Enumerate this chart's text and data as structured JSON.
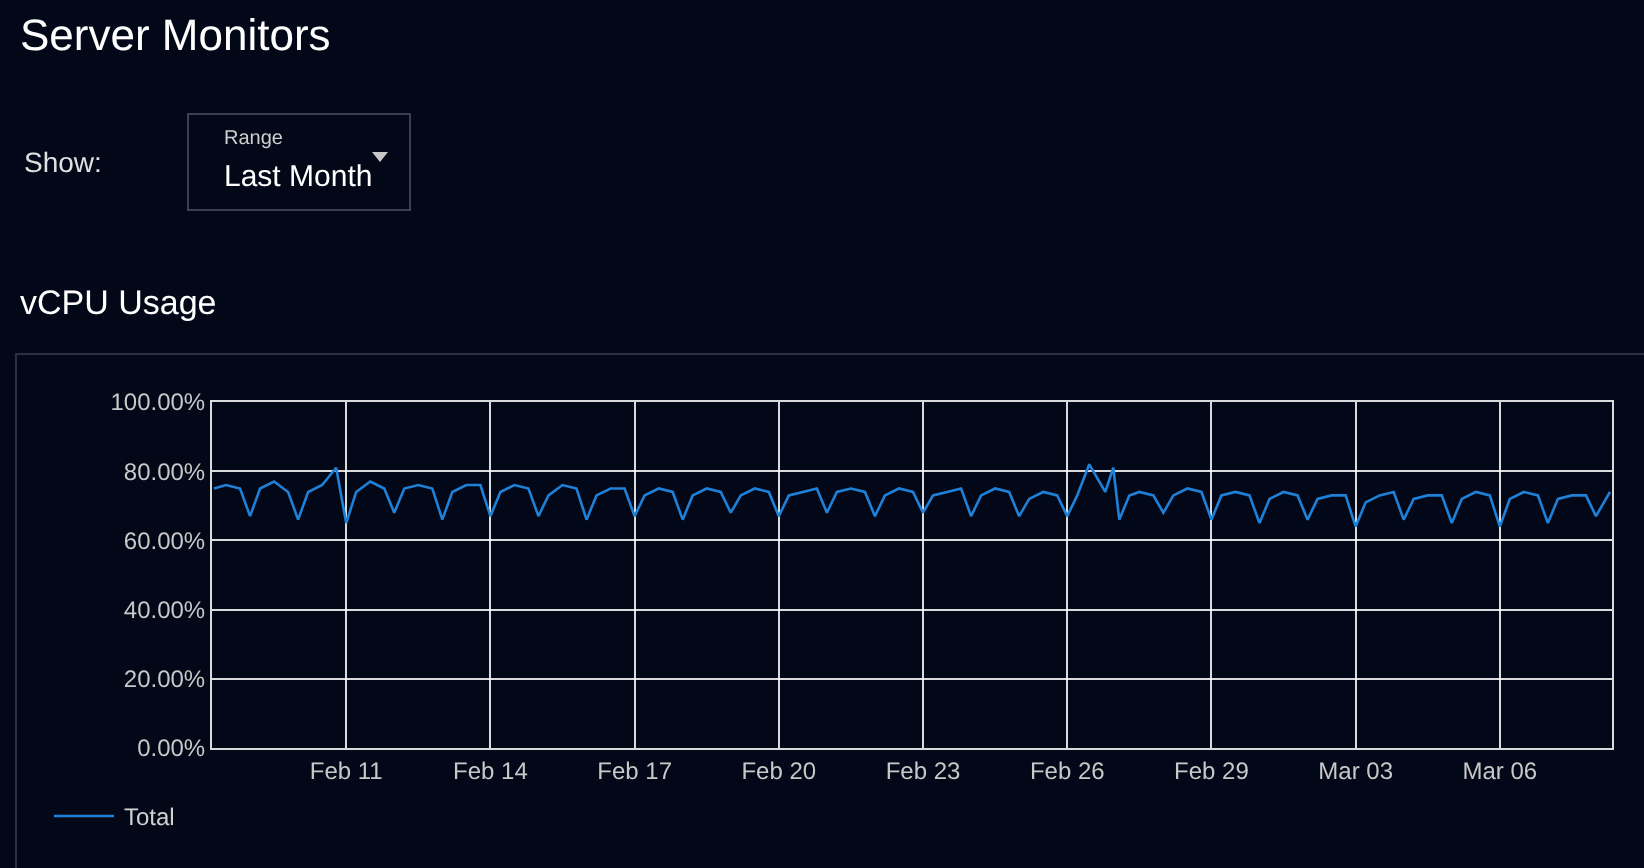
{
  "chart_data": {
    "type": "line",
    "title": "Server Monitors",
    "subtitle": "vCPU Usage",
    "annotations": [
      "Show:",
      "Range",
      "Last Month"
    ],
    "xlim": [
      "--02-08T05:00",
      "--03-08T08:00"
    ],
    "xticks": [
      {
        "value": "--02-11",
        "label": "Feb 11"
      },
      {
        "value": "--02-14",
        "label": "Feb 14"
      },
      {
        "value": "--02-17",
        "label": "Feb 17"
      },
      {
        "value": "--02-20",
        "label": "Feb 20"
      },
      {
        "value": "--02-23",
        "label": "Feb 23"
      },
      {
        "value": "--02-26",
        "label": "Feb 26"
      },
      {
        "value": "--02-29",
        "label": "Feb 29"
      },
      {
        "value": "--03-03",
        "label": "Mar 03"
      },
      {
        "value": "--03-06",
        "label": "Mar 06"
      }
    ],
    "ylim": [
      0,
      100
    ],
    "yticks": [
      {
        "value": 0,
        "label": "0.00%"
      },
      {
        "value": 20,
        "label": "20.00%"
      },
      {
        "value": 40,
        "label": "40.00%"
      },
      {
        "value": 60,
        "label": "60.00%"
      },
      {
        "value": 80,
        "label": "80.00%"
      },
      {
        "value": 100,
        "label": "100.00%"
      }
    ],
    "grid": true,
    "legend": "bottom left",
    "marker": "none",
    "line_style": "solid",
    "series": [
      {
        "name": "Total",
        "color": "#1f80d8",
        "x": [
          "--02-08T06:00",
          "--02-08T12:00",
          "--02-08T19:00",
          "--02-09T00:00",
          "--02-09T05:00",
          "--02-09T12:00",
          "--02-09T19:00",
          "--02-10T00:00",
          "--02-10T05:00",
          "--02-10T12:00",
          "--02-10T19:00",
          "--02-11T00:00",
          "--02-11T05:00",
          "--02-11T12:00",
          "--02-11T19:00",
          "--02-12T00:00",
          "--02-12T05:00",
          "--02-12T12:00",
          "--02-12T19:00",
          "--02-13T00:00",
          "--02-13T05:00",
          "--02-13T12:00",
          "--02-13T19:00",
          "--02-14T00:00",
          "--02-14T05:00",
          "--02-14T12:00",
          "--02-14T19:00",
          "--02-15T00:00",
          "--02-15T05:00",
          "--02-15T12:00",
          "--02-15T19:00",
          "--02-16T00:00",
          "--02-16T05:00",
          "--02-16T12:00",
          "--02-16T19:00",
          "--02-17T00:00",
          "--02-17T05:00",
          "--02-17T12:00",
          "--02-17T19:00",
          "--02-18T00:00",
          "--02-18T05:00",
          "--02-18T12:00",
          "--02-18T19:00",
          "--02-19T00:00",
          "--02-19T05:00",
          "--02-19T12:00",
          "--02-19T19:00",
          "--02-20T00:00",
          "--02-20T05:00",
          "--02-20T12:00",
          "--02-20T19:00",
          "--02-21T00:00",
          "--02-21T05:00",
          "--02-21T12:00",
          "--02-21T19:00",
          "--02-22T00:00",
          "--02-22T05:00",
          "--02-22T12:00",
          "--02-22T19:00",
          "--02-23T00:00",
          "--02-23T05:00",
          "--02-23T12:00",
          "--02-23T19:00",
          "--02-24T00:00",
          "--02-24T05:00",
          "--02-24T12:00",
          "--02-24T19:00",
          "--02-25T00:00",
          "--02-25T05:00",
          "--02-25T12:00",
          "--02-25T19:00",
          "--02-26T00:00",
          "--02-26T05:00",
          "--02-26T11:00",
          "--02-26T19:00",
          "--02-26T23:00",
          "--02-27T02:00",
          "--02-27T07:00",
          "--02-27T12:00",
          "--02-27T19:00",
          "--02-28T00:00",
          "--02-28T05:00",
          "--02-28T12:00",
          "--02-28T19:00",
          "--02-29T00:00",
          "--02-29T05:00",
          "--02-29T12:00",
          "--02-29T19:00",
          "--03-01T00:00",
          "--03-01T05:00",
          "--03-01T12:00",
          "--03-01T19:00",
          "--03-02T00:00",
          "--03-02T05:00",
          "--03-02T12:00",
          "--03-02T19:00",
          "--03-03T00:00",
          "--03-03T05:00",
          "--03-03T12:00",
          "--03-03T19:00",
          "--03-04T00:00",
          "--03-04T05:00",
          "--03-04T12:00",
          "--03-04T19:00",
          "--03-05T00:00",
          "--03-05T05:00",
          "--03-05T12:00",
          "--03-05T19:00",
          "--03-06T00:00",
          "--03-06T05:00",
          "--03-06T12:00",
          "--03-06T19:00",
          "--03-07T00:00",
          "--03-07T05:00",
          "--03-07T12:00",
          "--03-07T19:00",
          "--03-08T00:00",
          "--03-08T07:00"
        ],
        "values": [
          75,
          76,
          75,
          67,
          75,
          77,
          74,
          66,
          74,
          76,
          81,
          65,
          74,
          77,
          75,
          68,
          75,
          76,
          75,
          66,
          74,
          76,
          76,
          67,
          74,
          76,
          75,
          67,
          73,
          76,
          75,
          66,
          73,
          75,
          75,
          67,
          73,
          75,
          74,
          66,
          73,
          75,
          74,
          68,
          73,
          75,
          74,
          67,
          73,
          74,
          75,
          68,
          74,
          75,
          74,
          67,
          73,
          75,
          74,
          68,
          73,
          74,
          75,
          67,
          73,
          75,
          74,
          67,
          72,
          74,
          73,
          67,
          73,
          82,
          74,
          81,
          66,
          73,
          74,
          73,
          68,
          73,
          75,
          74,
          66,
          73,
          74,
          73,
          65,
          72,
          74,
          73,
          66,
          72,
          73,
          73,
          64,
          71,
          73,
          74,
          66,
          72,
          73,
          73,
          65,
          72,
          74,
          73,
          64,
          72,
          74,
          73,
          65,
          72,
          73,
          73,
          67,
          74
        ]
      }
    ]
  }
}
